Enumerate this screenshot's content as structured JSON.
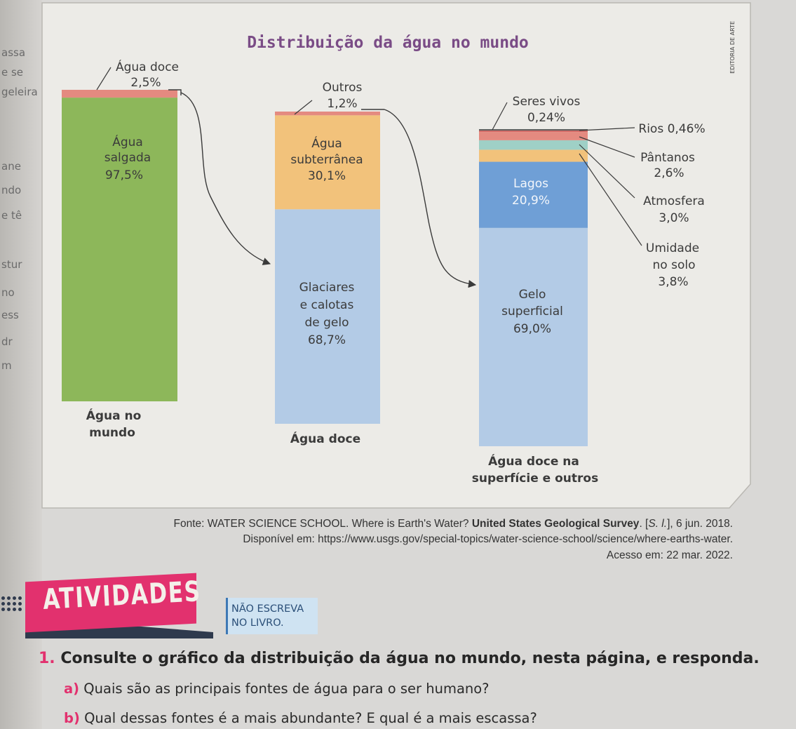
{
  "chart_data": {
    "type": "bar",
    "title": "Distribuição da água no mundo",
    "bars": [
      {
        "label": "Água no mundo",
        "segments": [
          {
            "name": "Água salgada",
            "value": 97.5,
            "value_label": "97,5%",
            "color": "#8db75a"
          },
          {
            "name": "Água doce",
            "value": 2.5,
            "value_label": "2,5%",
            "color": "#e48a80"
          }
        ]
      },
      {
        "label": "Água doce",
        "segments": [
          {
            "name": "Glaciares e calotas de gelo",
            "value": 68.7,
            "value_label": "68,7%",
            "color": "#b3cbe6"
          },
          {
            "name": "Água subterrânea",
            "value": 30.1,
            "value_label": "30,1%",
            "color": "#f2c27b"
          },
          {
            "name": "Outros",
            "value": 1.2,
            "value_label": "1,2%",
            "color": "#e48a80"
          }
        ]
      },
      {
        "label": "Água doce na superfície e outros",
        "segments": [
          {
            "name": "Gelo superficial",
            "value": 69.0,
            "value_label": "69,0%",
            "color": "#b3cbe6"
          },
          {
            "name": "Lagos",
            "value": 20.9,
            "value_label": "20,9%",
            "color": "#6f9fd6"
          },
          {
            "name": "Umidade no solo",
            "value": 3.8,
            "value_label": "3,8%",
            "color": "#f2c27b"
          },
          {
            "name": "Atmosfera",
            "value": 3.0,
            "value_label": "3,0%",
            "color": "#9fd0c6"
          },
          {
            "name": "Pântanos",
            "value": 2.6,
            "value_label": "2,6%",
            "color": "#e48a80"
          },
          {
            "name": "Rios",
            "value": 0.46,
            "value_label": "0,46%",
            "color": "#d66a66"
          },
          {
            "name": "Seres vivos",
            "value": 0.24,
            "value_label": "0,24%",
            "color": "#5b5b5b"
          }
        ]
      }
    ]
  },
  "labels": {
    "agua_doce_top": "Água doce",
    "agua_doce_top_value": "2,5%",
    "salgada_line1": "Água",
    "salgada_line2": "salgada",
    "salgada_value": "97,5%",
    "bar1_caption_line1": "Água no",
    "bar1_caption_line2": "mundo",
    "outros": "Outros",
    "outros_value": "1,2%",
    "subterranea_line1": "Água",
    "subterranea_line2": "subterrânea",
    "subterranea_value": "30,1%",
    "glaciares_line1": "Glaciares",
    "glaciares_line2": "e calotas",
    "glaciares_line3": "de gelo",
    "glaciares_value": "68,7%",
    "bar2_caption": "Água doce",
    "seres_vivos": "Seres vivos",
    "seres_vivos_value": "0,24%",
    "rios": "Rios 0,46%",
    "pantanos": "Pântanos",
    "pantanos_value": "2,6%",
    "lagos": "Lagos",
    "lagos_value": "20,9%",
    "atmosfera": "Atmosfera",
    "atmosfera_value": "3,0%",
    "umidade_line1": "Umidade",
    "umidade_line2": "no solo",
    "umidade_value": "3,8%",
    "gelo_line1": "Gelo",
    "gelo_line2": "superficial",
    "gelo_value": "69,0%",
    "bar3_caption_line1": "Água doce na",
    "bar3_caption_line2": "superfície e outros",
    "credit": "EDITORIA DE ARTE"
  },
  "source": {
    "prefix": "Fonte: WATER SCIENCE SCHOOL. Where is Earth's Water? ",
    "publisher": "United States Geological Survey",
    "place_pre": ". [",
    "place": "S. l.",
    "place_post": "], 6 jun. 2018.",
    "line2": "Disponível em: https://www.usgs.gov/special-topics/water-science-school/science/where-earths-water.",
    "line3": "Acesso em: 22 mar. 2022."
  },
  "activities": {
    "title": "ATIVIDADES",
    "nao_escreva_line1": "NÃO ESCREVA",
    "nao_escreva_line2": "NO LIVRO.",
    "q1_number": "1.",
    "q1_text": "Consulte o gráfico da distribuição da água no mundo, nesta página, e responda.",
    "qa_letter": "a)",
    "qa_text": "Quais são as principais fontes de água para o ser humano?",
    "qb_letter": "b)",
    "qb_text": "Qual dessas fontes é a mais abundante? E qual é a mais escassa?"
  },
  "margin_fragments": [
    "assa",
    "e se",
    "geleira",
    "ane",
    "ndo",
    "e tê",
    "stur",
    "no",
    "ess",
    "dr",
    "m"
  ],
  "colors": {
    "accent": "#e2316e",
    "panel": "#ecebe7",
    "arrow": "#3a3a3a"
  }
}
